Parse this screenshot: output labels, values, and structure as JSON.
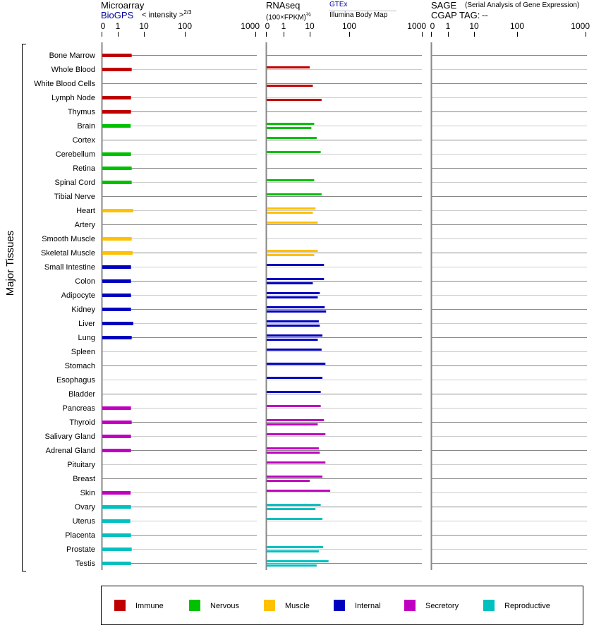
{
  "header": {
    "microarray": {
      "title": "Microarray",
      "source": "BioGPS",
      "unit": "< intensity >",
      "unit_exp": "2/3"
    },
    "rnaseq": {
      "title": "RNAseq",
      "unit": "(100×FPKM)",
      "unit_exp": "½",
      "source1": "GTEx",
      "source2": "Illumina Body Map"
    },
    "sage": {
      "title": "SAGE",
      "subtitle": "(Serial Analysis of Gene Expression)",
      "tag_label": "CGAP TAG:",
      "tag_value": "--"
    }
  },
  "chart_data": {
    "type": "bar",
    "orientation": "horizontal",
    "ylabel": "Major Tissues",
    "tick_labels": [
      "0",
      "1",
      "10",
      "100",
      "1000"
    ],
    "ticks": [
      0,
      1,
      10,
      100,
      1000
    ],
    "xlim": [
      0,
      1000
    ],
    "grid": true,
    "legend_placement": "bottom",
    "categories": [
      {
        "name": "Immune",
        "color": "#c00000"
      },
      {
        "name": "Nervous",
        "color": "#00c000"
      },
      {
        "name": "Muscle",
        "color": "#ffc000"
      },
      {
        "name": "Internal",
        "color": "#0000c0"
      },
      {
        "name": "Secretory",
        "color": "#c000c0"
      },
      {
        "name": "Reproductive",
        "color": "#00c0c0"
      }
    ],
    "tissues": [
      {
        "name": "Bone Marrow",
        "cat": 0,
        "microarray": 3.4
      },
      {
        "name": "Whole Blood",
        "cat": 0,
        "microarray": 3.4,
        "gtex": 10
      },
      {
        "name": "White Blood Cells",
        "cat": 0,
        "illumina": 12
      },
      {
        "name": "Lymph Node",
        "cat": 0,
        "microarray": 3.2,
        "illumina": 20
      },
      {
        "name": "Thymus",
        "cat": 0,
        "microarray": 3.2
      },
      {
        "name": "Brain",
        "cat": 1,
        "microarray": 3.1,
        "gtex": 13,
        "illumina": 11
      },
      {
        "name": "Cortex",
        "cat": 1,
        "gtex": 15
      },
      {
        "name": "Cerebellum",
        "cat": 1,
        "microarray": 3.2,
        "gtex": 19
      },
      {
        "name": "Retina",
        "cat": 1,
        "microarray": 3.4
      },
      {
        "name": "Spinal Cord",
        "cat": 1,
        "microarray": 3.4,
        "gtex": 13
      },
      {
        "name": "Tibial Nerve",
        "cat": 1,
        "gtex": 20
      },
      {
        "name": "Heart",
        "cat": 2,
        "microarray": 3.9,
        "gtex": 14,
        "illumina": 12
      },
      {
        "name": "Artery",
        "cat": 2,
        "gtex": 16
      },
      {
        "name": "Smooth Muscle",
        "cat": 2,
        "microarray": 3.4
      },
      {
        "name": "Skeletal Muscle",
        "cat": 2,
        "microarray": 3.7,
        "gtex": 16,
        "illumina": 13
      },
      {
        "name": "Small Intestine",
        "cat": 3,
        "microarray": 3.2,
        "gtex": 23
      },
      {
        "name": "Colon",
        "cat": 3,
        "microarray": 3.2,
        "gtex": 23,
        "illumina": 12
      },
      {
        "name": "Adipocyte",
        "cat": 3,
        "microarray": 3.2,
        "gtex": 18,
        "illumina": 16
      },
      {
        "name": "Kidney",
        "cat": 3,
        "microarray": 3.2,
        "gtex": 24,
        "illumina": 26
      },
      {
        "name": "Liver",
        "cat": 3,
        "microarray": 3.9,
        "gtex": 17,
        "illumina": 18
      },
      {
        "name": "Lung",
        "cat": 3,
        "microarray": 3.4,
        "gtex": 21,
        "illumina": 16
      },
      {
        "name": "Spleen",
        "cat": 3,
        "gtex": 20
      },
      {
        "name": "Stomach",
        "cat": 3,
        "gtex": 25
      },
      {
        "name": "Esophagus",
        "cat": 3,
        "gtex": 21
      },
      {
        "name": "Bladder",
        "cat": 3,
        "gtex": 19
      },
      {
        "name": "Pancreas",
        "cat": 4,
        "microarray": 3.2,
        "gtex": 19
      },
      {
        "name": "Thyroid",
        "cat": 4,
        "microarray": 3.4,
        "gtex": 23,
        "illumina": 16
      },
      {
        "name": "Salivary Gland",
        "cat": 4,
        "microarray": 3.2,
        "gtex": 25
      },
      {
        "name": "Adrenal Gland",
        "cat": 4,
        "microarray": 3.2,
        "gtex": 17,
        "illumina": 18
      },
      {
        "name": "Pituitary",
        "cat": 4,
        "gtex": 25
      },
      {
        "name": "Breast",
        "cat": 4,
        "gtex": 21,
        "illumina": 10
      },
      {
        "name": "Skin",
        "cat": 4,
        "microarray": 3.1,
        "gtex": 33
      },
      {
        "name": "Ovary",
        "cat": 5,
        "microarray": 3.2,
        "gtex": 19,
        "illumina": 14
      },
      {
        "name": "Uterus",
        "cat": 5,
        "microarray": 3.0,
        "gtex": 21
      },
      {
        "name": "Placenta",
        "cat": 5,
        "microarray": 3.2
      },
      {
        "name": "Prostate",
        "cat": 5,
        "microarray": 3.4,
        "gtex": 22,
        "illumina": 17
      },
      {
        "name": "Testis",
        "cat": 5,
        "microarray": 3.2,
        "gtex": 30,
        "illumina": 15
      }
    ]
  }
}
